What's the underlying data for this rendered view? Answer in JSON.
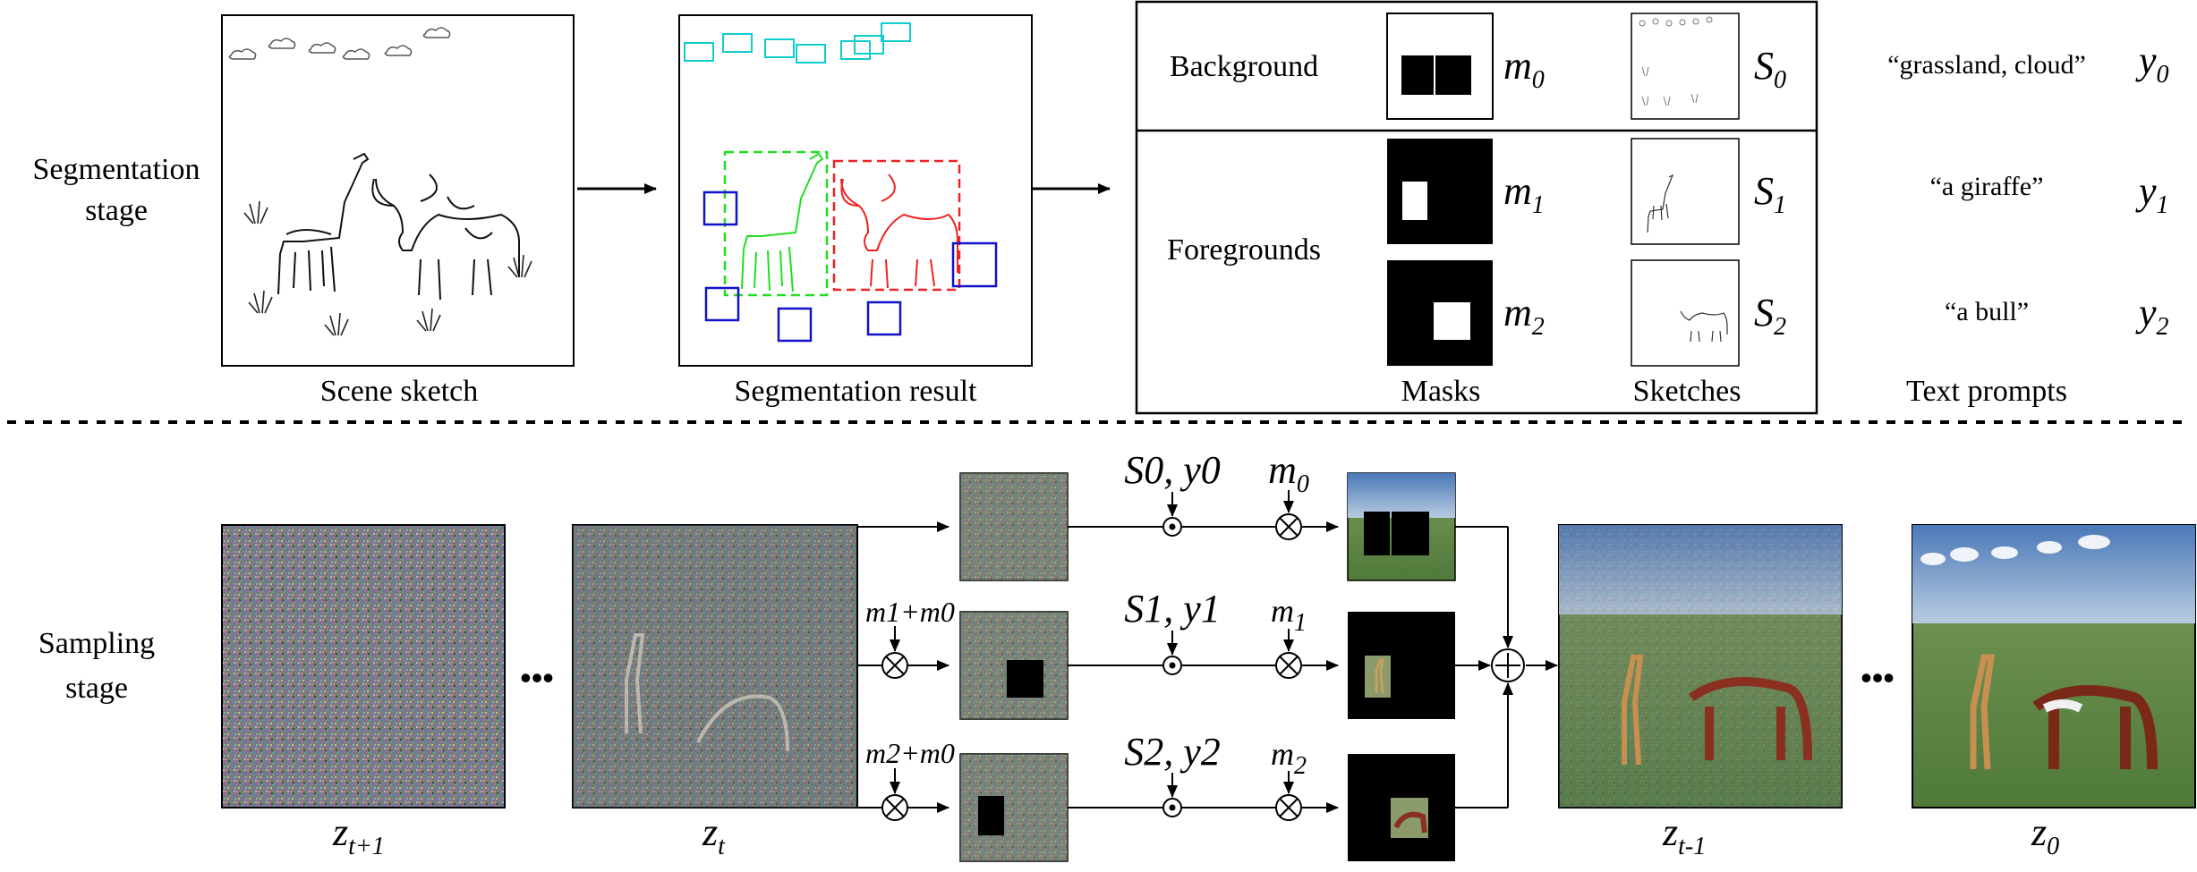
{
  "stage_labels": {
    "segmentation": [
      "Segmentation",
      "stage"
    ],
    "sampling": [
      "Sampling",
      "stage"
    ]
  },
  "captions": {
    "scene_sketch": "Scene sketch",
    "segmentation_result": "Segmentation result",
    "masks": "Masks",
    "sketches": "Sketches",
    "text_prompts": "Text prompts"
  },
  "rows": {
    "background": "Background",
    "foregrounds": "Foregrounds"
  },
  "symbols": {
    "m0": {
      "base": "m",
      "sub": "0"
    },
    "m1": {
      "base": "m",
      "sub": "1"
    },
    "m2": {
      "base": "m",
      "sub": "2"
    },
    "S0": {
      "base": "S",
      "sub": "0"
    },
    "S1": {
      "base": "S",
      "sub": "1"
    },
    "S2": {
      "base": "S",
      "sub": "2"
    },
    "y0": {
      "base": "y",
      "sub": "0"
    },
    "y1": {
      "base": "y",
      "sub": "1"
    },
    "y2": {
      "base": "y",
      "sub": "2"
    }
  },
  "prompts": {
    "p0": "“grassland, cloud”",
    "p1": "“a giraffe”",
    "p2": "“a bull”"
  },
  "sampling_labels": {
    "zt1": {
      "base": "z",
      "sub": "t+1"
    },
    "zt": {
      "base": "z",
      "sub": "t"
    },
    "ztm1": {
      "base": "z",
      "sub": "t-1"
    },
    "z0": {
      "base": "z",
      "sub": "0"
    },
    "sy0": "S0, y0",
    "sy1": "S1, y1",
    "sy2": "S2, y2",
    "m10": "m1+m0",
    "m20": "m2+m0"
  },
  "ellipsis": "•••",
  "colors": {
    "giraffe_box": "#22dd22",
    "bull_box": "#ee2222",
    "grass_box": "#1111cc",
    "cloud_box": "#11cccc",
    "mask": "#000000"
  }
}
